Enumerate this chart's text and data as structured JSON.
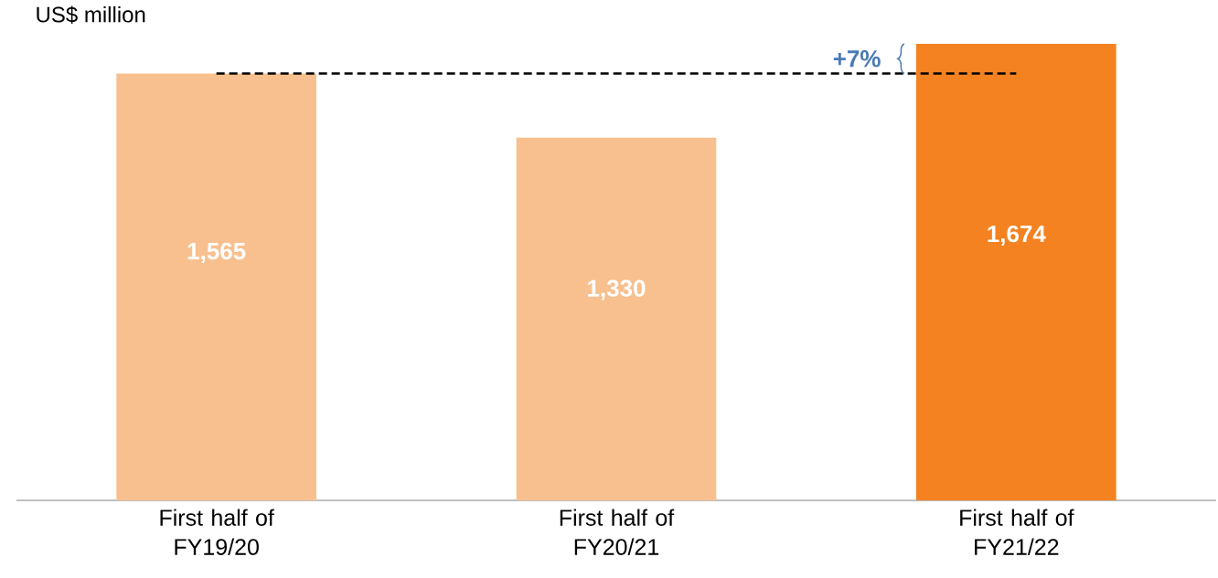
{
  "chart_data": {
    "type": "bar",
    "ylabel": "US$ million",
    "categories": [
      "First half of FY19/20",
      "First half of FY20/21",
      "First half of FY21/22"
    ],
    "values": [
      1565,
      1330,
      1674
    ],
    "colors": [
      "#f9c08f",
      "#f9c08f",
      "#f58220"
    ],
    "value_labels": [
      "1,565",
      "1,330",
      "1,674"
    ],
    "ref_lines": [
      {
        "axis": "y",
        "value": 1565,
        "color": "#000000",
        "line_style": "dashed"
      }
    ],
    "annotations": [
      "+7%"
    ]
  }
}
